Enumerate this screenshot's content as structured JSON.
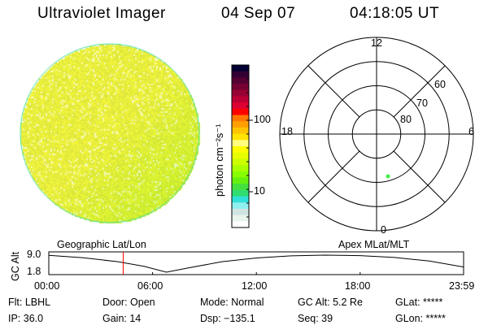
{
  "header": {
    "title": "Ultraviolet Imager",
    "date": "04 Sep 07",
    "time": "04:18:05 UT"
  },
  "image": {
    "colors": {
      "base": "#eef23a",
      "dark": "#c8e632"
    }
  },
  "colorbar": {
    "label": "photon cm⁻²s⁻¹",
    "ticks": [
      {
        "label": "100",
        "value": 100
      },
      {
        "label": "10",
        "value": 10
      }
    ],
    "colors": [
      "#000033",
      "#330033",
      "#550033",
      "#770033",
      "#990033",
      "#bb0033",
      "#dd0033",
      "#ff0000",
      "#ff7700",
      "#ffa000",
      "#ffc400",
      "#ffe400",
      "#ffff80",
      "#ffff00",
      "#e8ff00",
      "#ccff00",
      "#aaff00",
      "#88ff00",
      "#66f010",
      "#44e040",
      "#30dd70",
      "#30e0d8",
      "#90f0f0",
      "#d0e4e4",
      "#e8f4ec",
      "#ffffff"
    ]
  },
  "polar": {
    "top_label": "12",
    "bottom_label": "0",
    "left_label": "18",
    "right_label": "6",
    "ring_labels": [
      "60",
      "70",
      "80"
    ],
    "point_color": "#44ee44"
  },
  "panel": {
    "left_title": "Geographic Lat/Lon",
    "right_title": "Apex MLat/MLT"
  },
  "chart_data": {
    "type": "line",
    "ylabel": "GC Alt",
    "yticks": [
      "9.0",
      "1.8"
    ],
    "ylim": [
      1.8,
      9.0
    ],
    "xticks": [
      "00:00",
      "06:00",
      "12:00",
      "18:00",
      "23:59"
    ],
    "xlim_hours": [
      0,
      23.98
    ],
    "x_hours": [
      0,
      2,
      4,
      5.5,
      6.8,
      8,
      10,
      12,
      14,
      16,
      18,
      20,
      22,
      23.98
    ],
    "y": [
      8.9,
      7.9,
      6.2,
      4.3,
      1.8,
      3.5,
      6.2,
      7.8,
      8.7,
      9.0,
      8.8,
      8.0,
      6.5,
      4.0
    ],
    "marker_hour": 4.3,
    "marker_color": "#ff0000"
  },
  "status": {
    "flt": "Flt: LBHL",
    "ip": "IP: 36.0",
    "door": "Door: Open",
    "gain": "Gain: 14",
    "mode": "Mode: Normal",
    "dsp": "Dsp: −135.1",
    "gcalt": "GC Alt: 5.2 Re",
    "seq": "Seq: 39",
    "glat": "GLat: *****",
    "glon": "GLon: *****"
  }
}
